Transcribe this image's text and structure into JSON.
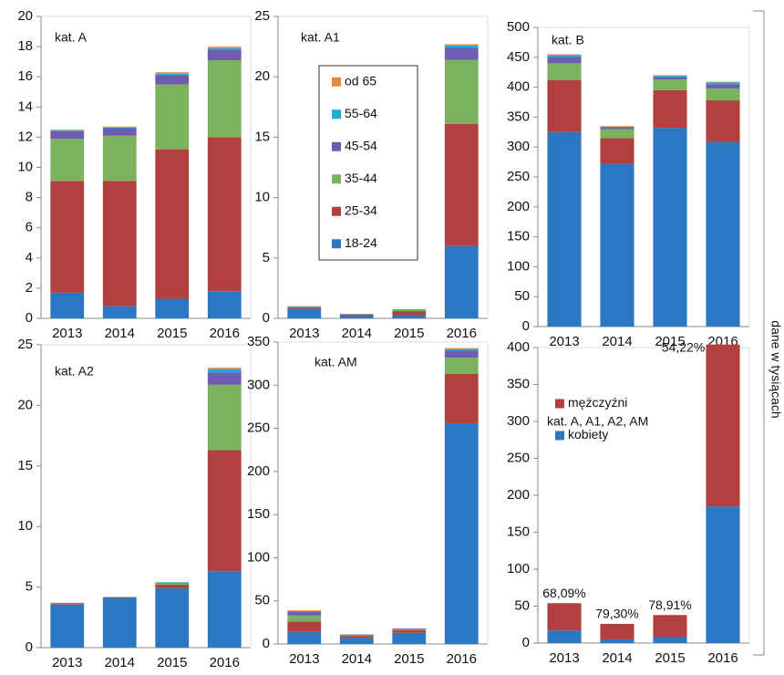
{
  "chart_data": [
    {
      "type": "stacked_bar",
      "title": "kat. A",
      "categories": [
        "2013",
        "2014",
        "2015",
        "2016"
      ],
      "ylim": [
        0,
        20
      ],
      "yticks": [
        0,
        2,
        4,
        6,
        8,
        10,
        12,
        14,
        16,
        18,
        20
      ],
      "legend": false,
      "series": [
        {
          "name": "18-24",
          "color": "#2b77c4",
          "values": [
            1.7,
            0.8,
            1.3,
            1.8
          ]
        },
        {
          "name": "25-34",
          "color": "#b3403f",
          "values": [
            7.4,
            8.3,
            9.9,
            10.2
          ]
        },
        {
          "name": "35-44",
          "color": "#7bb25c",
          "values": [
            2.8,
            3.0,
            4.3,
            5.1
          ]
        },
        {
          "name": "45-54",
          "color": "#6d5cb1",
          "values": [
            0.5,
            0.5,
            0.6,
            0.7
          ]
        },
        {
          "name": "55-64",
          "color": "#1eacd0",
          "values": [
            0.05,
            0.05,
            0.1,
            0.1
          ]
        },
        {
          "name": "od 65",
          "color": "#e8883a",
          "values": [
            0.05,
            0.05,
            0.1,
            0.1
          ]
        }
      ]
    },
    {
      "type": "stacked_bar",
      "title": "kat. A1",
      "categories": [
        "2013",
        "2014",
        "2015",
        "2016"
      ],
      "ylim": [
        0,
        25
      ],
      "yticks": [
        0,
        5,
        10,
        15,
        20,
        25
      ],
      "legend": "inside",
      "series": [
        {
          "name": "18-24",
          "color": "#2b77c4",
          "values": [
            0.8,
            0.3,
            0.3,
            6.0
          ]
        },
        {
          "name": "25-34",
          "color": "#b3403f",
          "values": [
            0.1,
            0.05,
            0.3,
            10.1
          ]
        },
        {
          "name": "35-44",
          "color": "#7bb25c",
          "values": [
            0.05,
            0,
            0.1,
            5.3
          ]
        },
        {
          "name": "45-54",
          "color": "#6d5cb1",
          "values": [
            0.05,
            0,
            0.05,
            1.0
          ]
        },
        {
          "name": "55-64",
          "color": "#1eacd0",
          "values": [
            0,
            0,
            0,
            0.2
          ]
        },
        {
          "name": "od 65",
          "color": "#e8883a",
          "values": [
            0,
            0,
            0,
            0.1
          ]
        }
      ]
    },
    {
      "type": "stacked_bar",
      "title": "kat. B",
      "categories": [
        "2013",
        "2014",
        "2015",
        "2016"
      ],
      "ylim": [
        0,
        500
      ],
      "yticks": [
        0,
        50,
        100,
        150,
        200,
        250,
        300,
        350,
        400,
        450,
        500
      ],
      "legend": false,
      "series": [
        {
          "name": "18-24",
          "color": "#2b77c4",
          "values": [
            325,
            272,
            332,
            308
          ]
        },
        {
          "name": "25-34",
          "color": "#b3403f",
          "values": [
            87,
            43,
            63,
            70
          ]
        },
        {
          "name": "35-44",
          "color": "#7bb25c",
          "values": [
            28,
            15,
            18,
            20
          ]
        },
        {
          "name": "45-54",
          "color": "#6d5cb1",
          "values": [
            11,
            3,
            4,
            7
          ]
        },
        {
          "name": "55-64",
          "color": "#1eacd0",
          "values": [
            3,
            1,
            2,
            3
          ]
        },
        {
          "name": "od 65",
          "color": "#e8883a",
          "values": [
            1,
            1,
            1,
            1
          ]
        }
      ]
    },
    {
      "type": "stacked_bar",
      "title": "kat. A2",
      "categories": [
        "2013",
        "2014",
        "2015",
        "2016"
      ],
      "ylim": [
        0,
        25
      ],
      "yticks": [
        0,
        5,
        10,
        15,
        20,
        25
      ],
      "legend": false,
      "series": [
        {
          "name": "18-24",
          "color": "#2b77c4",
          "values": [
            3.5,
            4.1,
            4.9,
            6.3
          ]
        },
        {
          "name": "25-34",
          "color": "#b3403f",
          "values": [
            0.1,
            0.05,
            0.3,
            10.0
          ]
        },
        {
          "name": "35-44",
          "color": "#7bb25c",
          "values": [
            0.05,
            0.05,
            0.1,
            5.4
          ]
        },
        {
          "name": "45-54",
          "color": "#6d5cb1",
          "values": [
            0.05,
            0,
            0.05,
            1.0
          ]
        },
        {
          "name": "55-64",
          "color": "#1eacd0",
          "values": [
            0,
            0,
            0.05,
            0.3
          ]
        },
        {
          "name": "od 65",
          "color": "#e8883a",
          "values": [
            0,
            0,
            0,
            0.1
          ]
        }
      ]
    },
    {
      "type": "stacked_bar",
      "title": "kat. AM",
      "categories": [
        "2013",
        "2014",
        "2015",
        "2016"
      ],
      "ylim": [
        0,
        350
      ],
      "yticks": [
        0,
        50,
        100,
        150,
        200,
        250,
        300,
        350
      ],
      "legend": false,
      "series": [
        {
          "name": "18-24",
          "color": "#2b77c4",
          "values": [
            14,
            7,
            13,
            256
          ]
        },
        {
          "name": "25-34",
          "color": "#b3403f",
          "values": [
            12,
            2,
            3,
            57
          ]
        },
        {
          "name": "35-44",
          "color": "#7bb25c",
          "values": [
            7,
            1,
            1,
            19
          ]
        },
        {
          "name": "45-54",
          "color": "#6d5cb1",
          "values": [
            4,
            1,
            1,
            8
          ]
        },
        {
          "name": "55-64",
          "color": "#1eacd0",
          "values": [
            1,
            0,
            0,
            2
          ]
        },
        {
          "name": "od 65",
          "color": "#e8883a",
          "values": [
            1,
            0,
            0,
            1
          ]
        }
      ]
    },
    {
      "type": "stacked_bar",
      "title": "kat. A, A1, A2, AM",
      "categories": [
        "2013",
        "2014",
        "2015",
        "2016"
      ],
      "ylim": [
        0,
        400
      ],
      "yticks": [
        0,
        50,
        100,
        150,
        200,
        250,
        300,
        350,
        400
      ],
      "legend": "inside",
      "bar_labels": [
        "68,09%",
        "79,30%",
        "78,91%",
        "54,22%"
      ],
      "series": [
        {
          "name": "kobiety",
          "color": "#2b77c4",
          "values": [
            17,
            5,
            8,
            185
          ]
        },
        {
          "name": "mężczyźni",
          "color": "#b3403f",
          "values": [
            37,
            21,
            30,
            219
          ]
        }
      ]
    }
  ],
  "axis_note": "dane w tysiącach"
}
